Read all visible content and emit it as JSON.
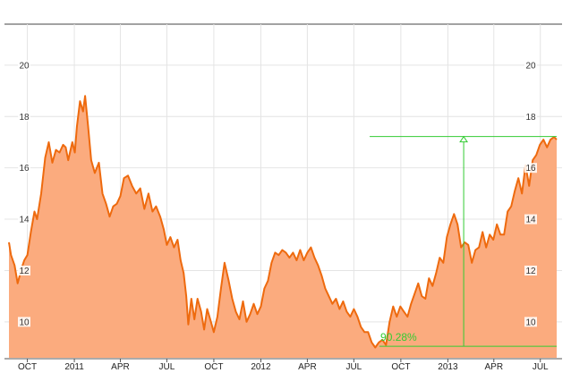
{
  "chart_data": {
    "type": "area",
    "title": "",
    "xlabel": "",
    "ylabel": "",
    "ylim": [
      8.6,
      21.6
    ],
    "xlim": [
      "2010-08-26",
      "2013-08-02"
    ],
    "y_ticks": [
      10,
      12,
      14,
      16,
      18,
      20
    ],
    "y_tick_labels": [
      "10",
      "12",
      "14",
      "16",
      "18",
      "20"
    ],
    "x_ticks": [
      {
        "date": "2010-10-01",
        "label": "OCT"
      },
      {
        "date": "2011-01-01",
        "label": "2011"
      },
      {
        "date": "2011-04-01",
        "label": "APR"
      },
      {
        "date": "2011-07-01",
        "label": "JUL"
      },
      {
        "date": "2011-10-01",
        "label": "OCT"
      },
      {
        "date": "2012-01-01",
        "label": "2012"
      },
      {
        "date": "2012-04-01",
        "label": "APR"
      },
      {
        "date": "2012-07-01",
        "label": "JUL"
      },
      {
        "date": "2012-10-01",
        "label": "OCT"
      },
      {
        "date": "2013-01-01",
        "label": "2013"
      },
      {
        "date": "2013-04-01",
        "label": "APR"
      },
      {
        "date": "2013-07-01",
        "label": "JUL"
      }
    ],
    "grid": true,
    "colors": {
      "line": "#ee6a0e",
      "fill": "#fbab7e",
      "annotation": "#33cc33",
      "grid": "#e4e4e4"
    },
    "series": [
      {
        "x": [
          "2010-08-26",
          "2010-08-30",
          "2010-09-06",
          "2010-09-12",
          "2010-09-20",
          "2010-09-25",
          "2010-10-01",
          "2010-10-08",
          "2010-10-15",
          "2010-10-20",
          "2010-10-28",
          "2010-11-05",
          "2010-11-12",
          "2010-11-19",
          "2010-11-26",
          "2010-12-03",
          "2010-12-10",
          "2010-12-15",
          "2010-12-20",
          "2010-12-28",
          "2011-01-02",
          "2011-01-06",
          "2011-01-12",
          "2011-01-18",
          "2011-01-22",
          "2011-01-28",
          "2011-02-03",
          "2011-02-10",
          "2011-02-18",
          "2011-02-25",
          "2011-03-04",
          "2011-03-11",
          "2011-03-18",
          "2011-03-25",
          "2011-04-01",
          "2011-04-08",
          "2011-04-16",
          "2011-04-24",
          "2011-05-02",
          "2011-05-10",
          "2011-05-18",
          "2011-05-26",
          "2011-06-03",
          "2011-06-10",
          "2011-06-18",
          "2011-06-25",
          "2011-07-01",
          "2011-07-08",
          "2011-07-15",
          "2011-07-22",
          "2011-07-28",
          "2011-08-03",
          "2011-08-08",
          "2011-08-12",
          "2011-08-18",
          "2011-08-24",
          "2011-08-30",
          "2011-09-06",
          "2011-09-12",
          "2011-09-18",
          "2011-09-24",
          "2011-10-01",
          "2011-10-08",
          "2011-10-15",
          "2011-10-22",
          "2011-10-30",
          "2011-11-06",
          "2011-11-13",
          "2011-11-20",
          "2011-11-27",
          "2011-12-04",
          "2011-12-11",
          "2011-12-18",
          "2011-12-25",
          "2012-01-01",
          "2012-01-08",
          "2012-01-15",
          "2012-01-22",
          "2012-01-29",
          "2012-02-05",
          "2012-02-12",
          "2012-02-19",
          "2012-02-26",
          "2012-03-04",
          "2012-03-11",
          "2012-03-18",
          "2012-03-25",
          "2012-04-01",
          "2012-04-08",
          "2012-04-15",
          "2012-04-22",
          "2012-04-29",
          "2012-05-06",
          "2012-05-13",
          "2012-05-20",
          "2012-05-27",
          "2012-06-03",
          "2012-06-10",
          "2012-06-17",
          "2012-06-24",
          "2012-07-01",
          "2012-07-08",
          "2012-07-15",
          "2012-07-22",
          "2012-07-29",
          "2012-08-05",
          "2012-08-12",
          "2012-08-19",
          "2012-08-26",
          "2012-09-02",
          "2012-09-09",
          "2012-09-16",
          "2012-09-23",
          "2012-09-30",
          "2012-10-07",
          "2012-10-14",
          "2012-10-21",
          "2012-10-28",
          "2012-11-04",
          "2012-11-11",
          "2012-11-18",
          "2012-11-25",
          "2012-12-02",
          "2012-12-09",
          "2012-12-16",
          "2012-12-23",
          "2012-12-30",
          "2013-01-06",
          "2013-01-13",
          "2013-01-20",
          "2013-01-27",
          "2013-02-03",
          "2013-02-10",
          "2013-02-17",
          "2013-02-24",
          "2013-03-03",
          "2013-03-10",
          "2013-03-17",
          "2013-03-24",
          "2013-03-31",
          "2013-04-07",
          "2013-04-14",
          "2013-04-21",
          "2013-04-28",
          "2013-05-05",
          "2013-05-12",
          "2013-05-19",
          "2013-05-26",
          "2013-06-02",
          "2013-06-09",
          "2013-06-16",
          "2013-06-23",
          "2013-06-30",
          "2013-07-07",
          "2013-07-14",
          "2013-07-21",
          "2013-07-28",
          "2013-08-02"
        ],
        "values": [
          13.1,
          12.6,
          12.2,
          11.5,
          12.1,
          12.4,
          12.6,
          13.5,
          14.3,
          14.0,
          15.0,
          16.4,
          17.0,
          16.2,
          16.7,
          16.6,
          16.9,
          16.8,
          16.3,
          17.0,
          16.6,
          17.6,
          18.6,
          18.2,
          18.8,
          17.6,
          16.3,
          15.8,
          16.2,
          15.0,
          14.6,
          14.1,
          14.5,
          14.6,
          14.9,
          15.6,
          15.7,
          15.3,
          15.0,
          15.2,
          14.4,
          15.0,
          14.3,
          14.5,
          14.1,
          13.6,
          13.0,
          13.3,
          12.9,
          13.2,
          12.4,
          11.9,
          11.0,
          9.9,
          10.9,
          10.1,
          10.9,
          10.4,
          9.7,
          10.5,
          10.1,
          9.6,
          10.2,
          11.3,
          12.3,
          11.6,
          10.9,
          10.4,
          10.1,
          10.8,
          10.0,
          10.3,
          10.7,
          10.3,
          10.6,
          11.3,
          11.6,
          12.3,
          12.7,
          12.6,
          12.8,
          12.7,
          12.5,
          12.7,
          12.4,
          12.8,
          12.4,
          12.7,
          12.9,
          12.5,
          12.2,
          11.8,
          11.3,
          11.0,
          10.7,
          10.9,
          10.5,
          10.8,
          10.4,
          10.2,
          10.5,
          10.2,
          9.8,
          9.6,
          9.6,
          9.2,
          9.0,
          9.2,
          9.3,
          9.1,
          10.0,
          10.6,
          10.2,
          10.6,
          10.4,
          10.2,
          10.7,
          11.1,
          11.5,
          11.0,
          10.9,
          11.7,
          11.4,
          11.9,
          12.5,
          12.3,
          13.3,
          13.8,
          14.2,
          13.8,
          12.9,
          13.1,
          13.0,
          12.3,
          12.8,
          12.9,
          13.5,
          12.9,
          13.4,
          13.2,
          13.8,
          13.4,
          13.4,
          14.3,
          14.5,
          15.1,
          15.6,
          15.0,
          16.1,
          15.3,
          16.3,
          16.5,
          16.9,
          17.1,
          16.8,
          17.1,
          17.2,
          17.1
        ]
      }
    ],
    "annotation": {
      "label": "90.28%",
      "low": 9.05,
      "high": 17.22,
      "date": "2013-02-01"
    },
    "y_labels_left": [
      "10",
      "12",
      "14",
      "16",
      "18",
      "20"
    ],
    "y_labels_right": [
      "10",
      "12",
      "14",
      "16",
      "18",
      "20"
    ]
  }
}
